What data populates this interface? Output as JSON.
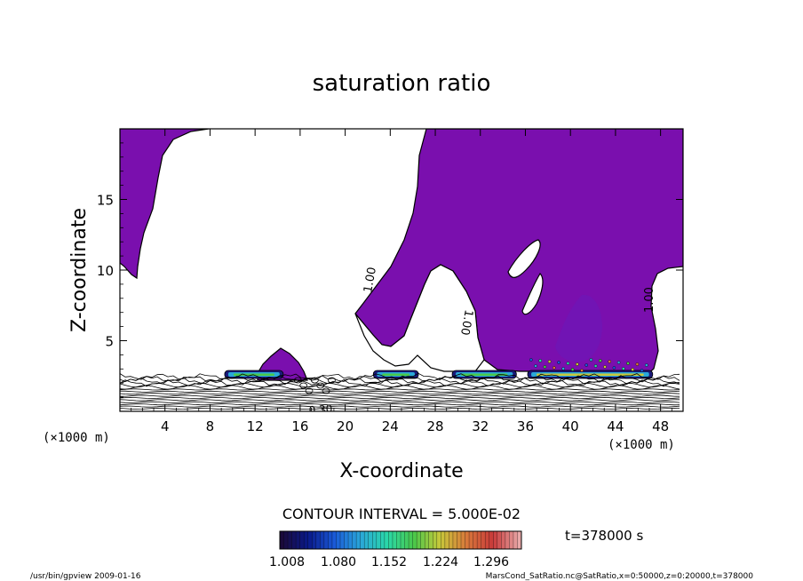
{
  "chart_data": {
    "type": "contour",
    "title": "saturation ratio",
    "xlabel": "X-coordinate",
    "ylabel": "Z-coordinate",
    "x_unit_label": "(×1000 m)",
    "x_unit_label_right": "(×1000 m)",
    "xlim": [
      0,
      50
    ],
    "ylim": [
      0,
      20
    ],
    "x_ticks": [
      4,
      8,
      12,
      16,
      20,
      24,
      28,
      32,
      36,
      40,
      44,
      48
    ],
    "y_ticks": [
      5,
      10,
      15
    ],
    "contour_labels": [
      "1.00",
      "1.00",
      "1.00",
      "0.30"
    ],
    "contour_interval": "CONTOUR INTERVAL = 5.000E-02",
    "colorbar": {
      "tick_labels": [
        "1.008",
        "1.080",
        "1.152",
        "1.224",
        "1.296"
      ],
      "min": 1.008,
      "max": 1.296,
      "colors": [
        "#1a0a3a",
        "#0a1a8a",
        "#1a5ad8",
        "#2aa8d8",
        "#2ad8a8",
        "#4ac84a",
        "#c8c83a",
        "#d8783a",
        "#c83a3a",
        "#e8a8a8"
      ]
    },
    "time_label": "t=378000 s",
    "fill_color": "#7a0fae",
    "footer_left": "/usr/bin/gpview  2009-01-16",
    "footer_right": "MarsCond_SatRatio.nc@SatRatio,x=0:50000,z=0:20000,t=378000"
  }
}
